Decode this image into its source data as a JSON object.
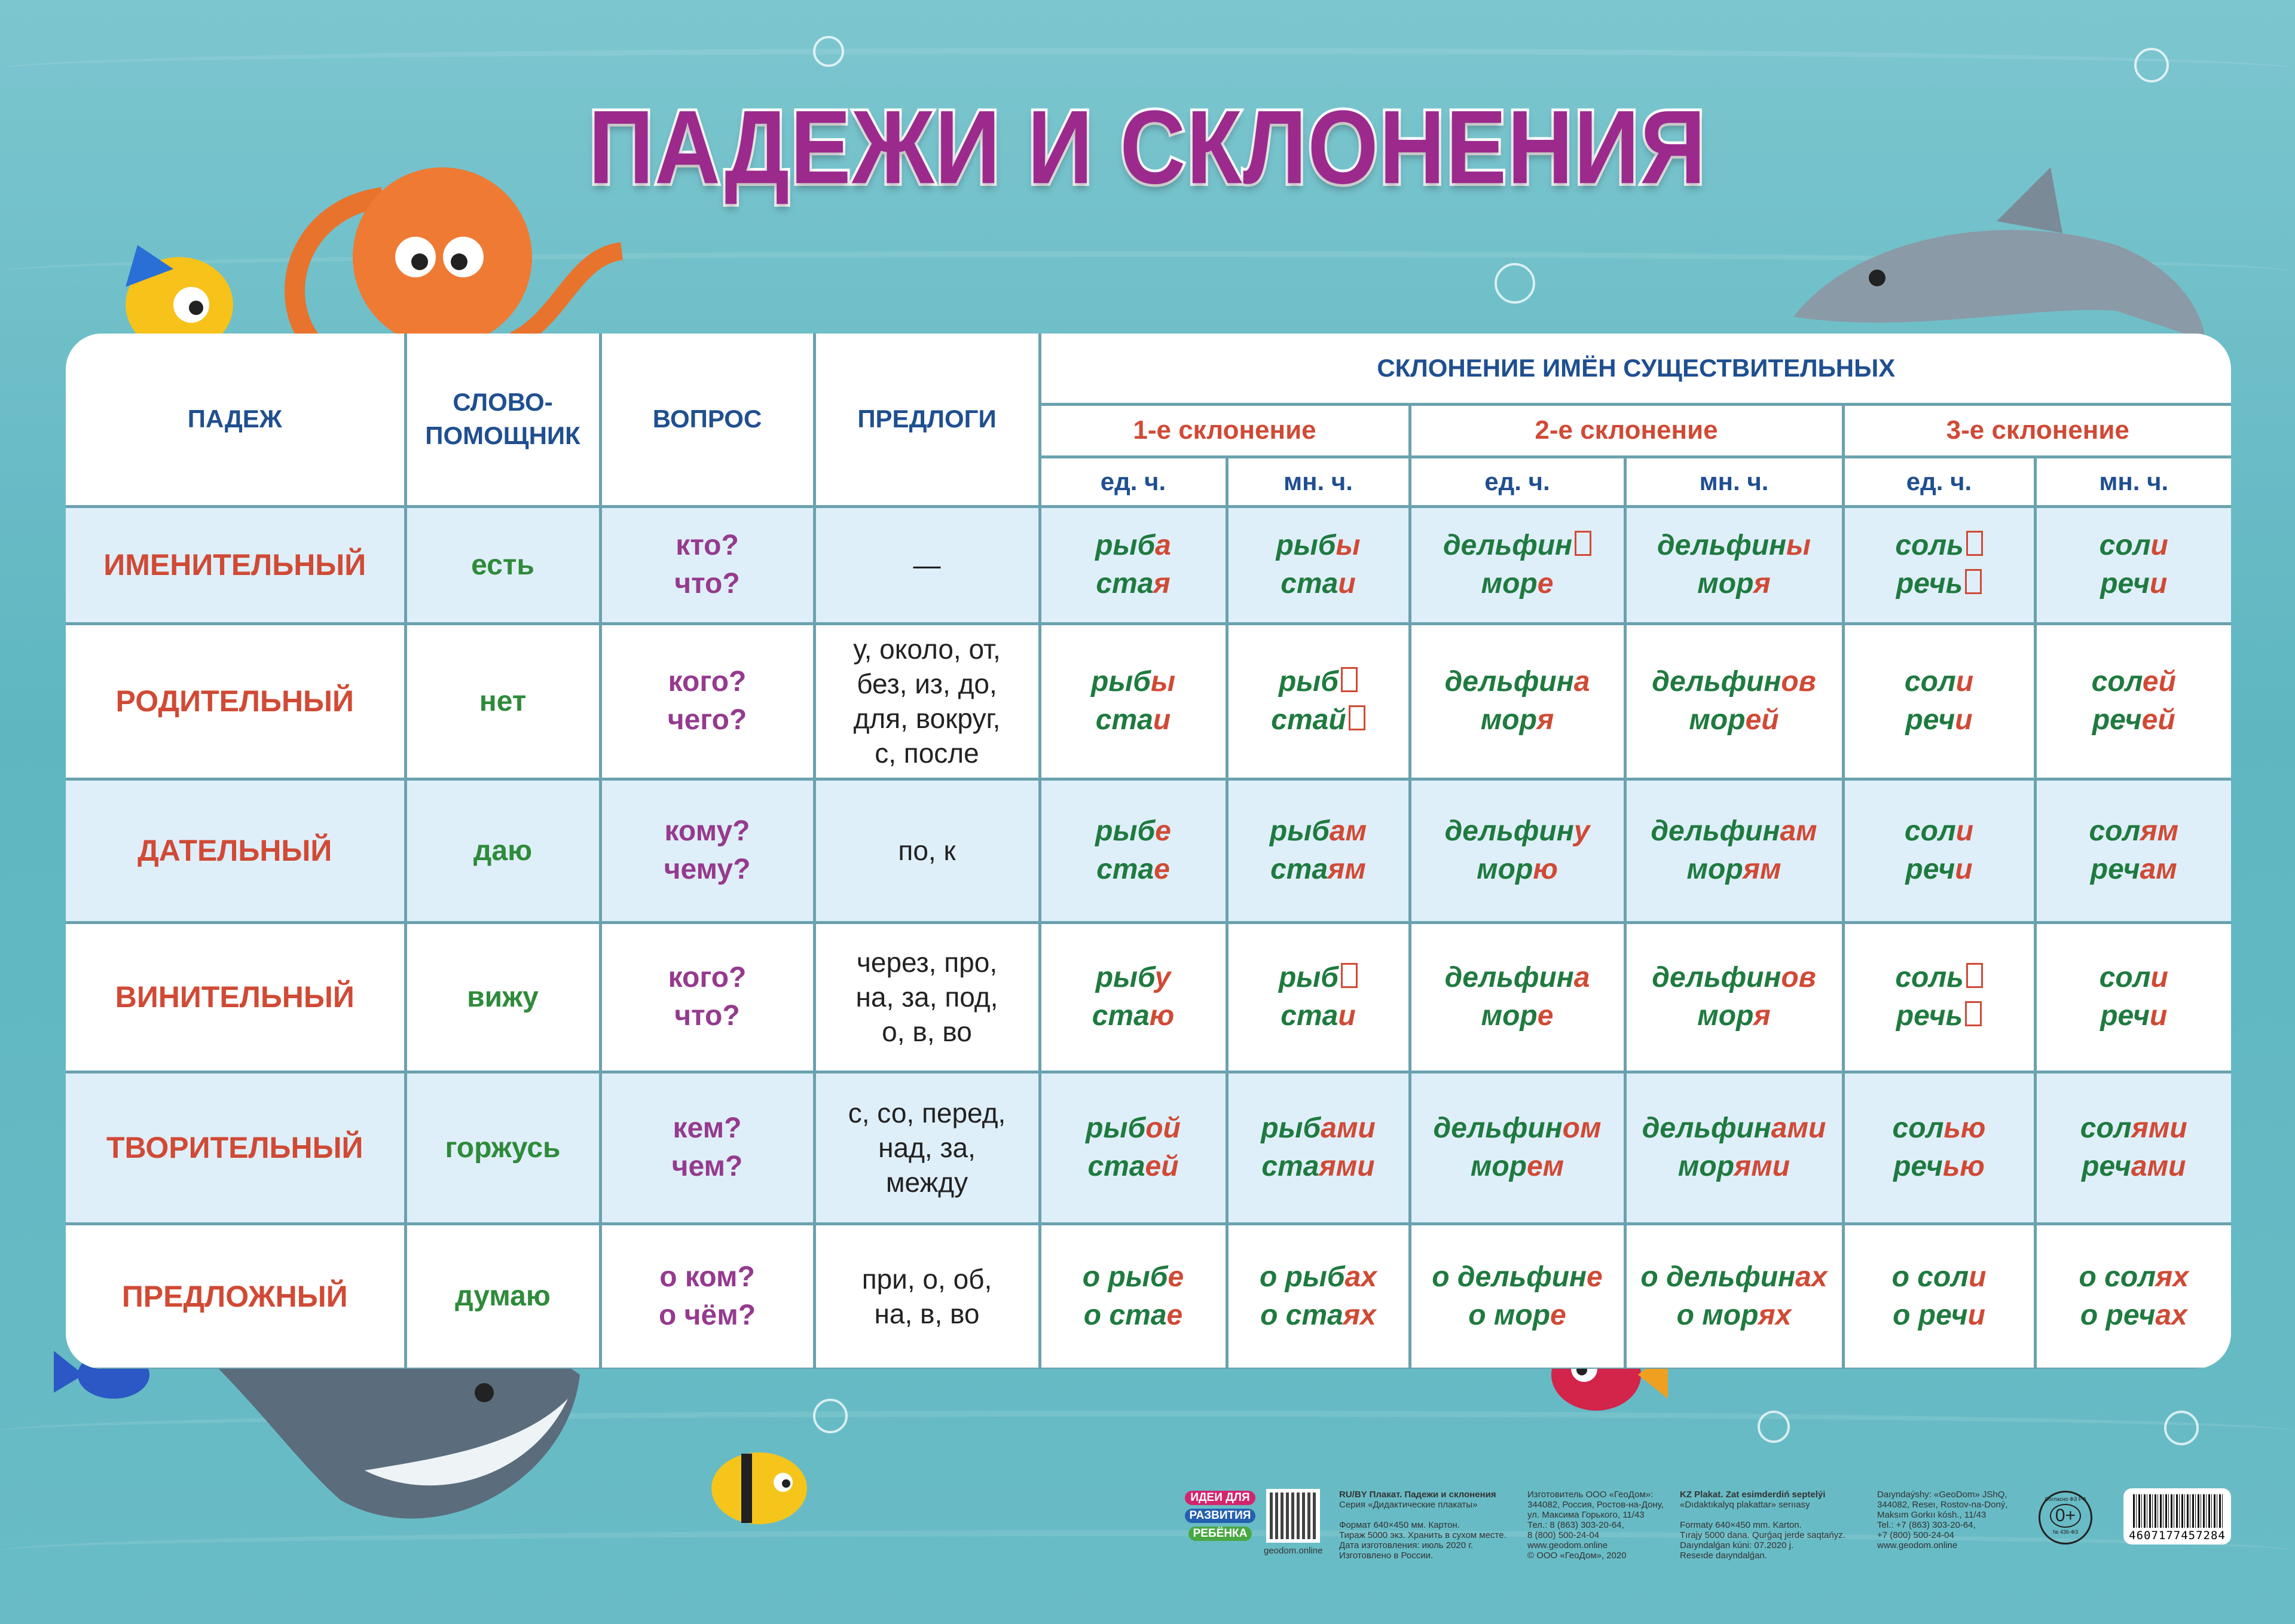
{
  "title": "ПАДЕЖИ И СКЛОНЕНИЯ",
  "colors": {
    "background": "#5fb6c1",
    "title": "#9b2a8c",
    "header": "#1f4f8f",
    "case": "#d04a35",
    "helper": "#2e8b3a",
    "question": "#953a8e",
    "stem": "#1f7a3f",
    "ending": "#d04a35",
    "row_alt": "#dfeffa"
  },
  "header": {
    "case": "ПАДЕЖ",
    "helper_line1": "СЛОВО-",
    "helper_line2": "ПОМОЩНИК",
    "question": "ВОПРОС",
    "prepositions": "ПРЕДЛОГИ",
    "declension_title": "СКЛОНЕНИЕ ИМЁН СУЩЕСТВИТЕЛЬНЫХ",
    "declensions": [
      "1-е склонение",
      "2-е склонение",
      "3-е склонение"
    ],
    "singular": "ед. ч.",
    "plural": "мн. ч."
  },
  "rows": [
    {
      "case": "ИМЕНИТЕЛЬНЫЙ",
      "helper": "есть",
      "questions": [
        "кто?",
        "что?"
      ],
      "prepositions": [
        "—"
      ],
      "forms": [
        [
          [
            "рыб",
            "а"
          ],
          [
            "ста",
            "я"
          ]
        ],
        [
          [
            "рыб",
            "ы"
          ],
          [
            "ста",
            "и"
          ]
        ],
        [
          [
            "дельфин",
            ""
          ],
          [
            "мор",
            "е"
          ]
        ],
        [
          [
            "дельфин",
            "ы"
          ],
          [
            "мор",
            "я"
          ]
        ],
        [
          [
            "соль",
            ""
          ],
          [
            "речь",
            ""
          ]
        ],
        [
          [
            "сол",
            "и"
          ],
          [
            "реч",
            "и"
          ]
        ]
      ]
    },
    {
      "case": "РОДИТЕЛЬНЫЙ",
      "helper": "нет",
      "questions": [
        "кого?",
        "чего?"
      ],
      "prepositions": [
        "у, около, от,",
        "без, из, до,",
        "для, вокруг,",
        "с, после"
      ],
      "forms": [
        [
          [
            "рыб",
            "ы"
          ],
          [
            "ста",
            "и"
          ]
        ],
        [
          [
            "рыб",
            ""
          ],
          [
            "стай",
            ""
          ]
        ],
        [
          [
            "дельфин",
            "а"
          ],
          [
            "мор",
            "я"
          ]
        ],
        [
          [
            "дельфин",
            "ов"
          ],
          [
            "мор",
            "ей"
          ]
        ],
        [
          [
            "сол",
            "и"
          ],
          [
            "реч",
            "и"
          ]
        ],
        [
          [
            "сол",
            "ей"
          ],
          [
            "реч",
            "ей"
          ]
        ]
      ]
    },
    {
      "case": "ДАТЕЛЬНЫЙ",
      "helper": "даю",
      "questions": [
        "кому?",
        "чему?"
      ],
      "prepositions": [
        "по, к"
      ],
      "forms": [
        [
          [
            "рыб",
            "е"
          ],
          [
            "ста",
            "е"
          ]
        ],
        [
          [
            "рыб",
            "ам"
          ],
          [
            "ста",
            "ям"
          ]
        ],
        [
          [
            "дельфин",
            "у"
          ],
          [
            "мор",
            "ю"
          ]
        ],
        [
          [
            "дельфин",
            "ам"
          ],
          [
            "мор",
            "ям"
          ]
        ],
        [
          [
            "сол",
            "и"
          ],
          [
            "реч",
            "и"
          ]
        ],
        [
          [
            "сол",
            "ям"
          ],
          [
            "реч",
            "ам"
          ]
        ]
      ]
    },
    {
      "case": "ВИНИТЕЛЬНЫЙ",
      "helper": "вижу",
      "questions": [
        "кого?",
        "что?"
      ],
      "prepositions": [
        "через, про,",
        "на, за, под,",
        "о, в, во"
      ],
      "forms": [
        [
          [
            "рыб",
            "у"
          ],
          [
            "ста",
            "ю"
          ]
        ],
        [
          [
            "рыб",
            ""
          ],
          [
            "ста",
            "и"
          ]
        ],
        [
          [
            "дельфин",
            "а"
          ],
          [
            "мор",
            "е"
          ]
        ],
        [
          [
            "дельфин",
            "ов"
          ],
          [
            "мор",
            "я"
          ]
        ],
        [
          [
            "соль",
            ""
          ],
          [
            "речь",
            ""
          ]
        ],
        [
          [
            "сол",
            "и"
          ],
          [
            "реч",
            "и"
          ]
        ]
      ]
    },
    {
      "case": "ТВОРИТЕЛЬНЫЙ",
      "helper": "горжусь",
      "questions": [
        "кем?",
        "чем?"
      ],
      "prepositions": [
        "с, со, перед,",
        "над, за,",
        "между"
      ],
      "forms": [
        [
          [
            "рыб",
            "ой"
          ],
          [
            "ста",
            "ей"
          ]
        ],
        [
          [
            "рыб",
            "ами"
          ],
          [
            "ста",
            "ями"
          ]
        ],
        [
          [
            "дельфин",
            "ом"
          ],
          [
            "мор",
            "ем"
          ]
        ],
        [
          [
            "дельфин",
            "ами"
          ],
          [
            "мор",
            "ями"
          ]
        ],
        [
          [
            "сол",
            "ью"
          ],
          [
            "реч",
            "ью"
          ]
        ],
        [
          [
            "сол",
            "ями"
          ],
          [
            "реч",
            "ами"
          ]
        ]
      ]
    },
    {
      "case": "ПРЕДЛОЖНЫЙ",
      "helper": "думаю",
      "questions": [
        "о ком?",
        "о чём?"
      ],
      "prepositions": [
        "при, о, об,",
        "на, в, во"
      ],
      "forms": [
        [
          [
            "о рыб",
            "е"
          ],
          [
            "о ста",
            "е"
          ]
        ],
        [
          [
            "о рыб",
            "ах"
          ],
          [
            "о ста",
            "ях"
          ]
        ],
        [
          [
            "о дельфин",
            "е"
          ],
          [
            "о мор",
            "е"
          ]
        ],
        [
          [
            "о дельфин",
            "ах"
          ],
          [
            "о мор",
            "ях"
          ]
        ],
        [
          [
            "о сол",
            "и"
          ],
          [
            "о реч",
            "и"
          ]
        ],
        [
          [
            "о сол",
            "ях"
          ],
          [
            "о реч",
            "ах"
          ]
        ]
      ]
    }
  ],
  "footer": {
    "logo": [
      "ИДЕИ ДЛЯ",
      "РАЗВИТИЯ",
      "РЕБЁНКА"
    ],
    "qr_caption": "geodom.online",
    "ru_block": {
      "title": "RU/BY Плакат. Падежи и склонения",
      "lines": [
        "Серия «Дидактические плакаты»",
        "",
        "Формат 640×450 мм. Картон.",
        "Тираж 5000 экз. Хранить в сухом месте.",
        "Дата изготовления: июль 2020 г.",
        "Изготовлено в России."
      ]
    },
    "ru_maker": {
      "lines": [
        "Изготовитель ООО «ГеоДом»:",
        "344082, Россия, Ростов-на-Дону,",
        "ул. Максима Горького, 11/43",
        "Тел.: 8 (863) 303-20-64,",
        "8 (800) 500-24-04",
        "www.geodom.online",
        "© ООО «ГеоДом», 2020"
      ]
    },
    "kz_block": {
      "title": "KZ Plakat. Zat esimderdiń septelýi",
      "lines": [
        "«Dıdaktıkalyq plakattar» serııasy",
        "",
        "Formaty 640×450 mm. Karton.",
        "Tırajy 5000 dana. Qurǵaq jerde saqtańyz.",
        "Daıyndalǵan kúni: 07.2020 j.",
        "Reseıde daıyndalǵan."
      ]
    },
    "kz_maker": {
      "lines": [
        "Daıyndaýshy: «GeoDom» JShQ,",
        "344082, Reseı, Rostov-na-Doný,",
        "Maksım Gorkıı kósh., 11/43",
        "Tel.: +7 (863) 303-20-64,",
        "+7 (800) 500-24-04",
        "www.geodom.online"
      ]
    },
    "age_badge": {
      "top": "Согласно ФЗ РФ",
      "rating": "0+",
      "bottom": "№ 436-ФЗ"
    },
    "barcode": "4607177457284"
  }
}
